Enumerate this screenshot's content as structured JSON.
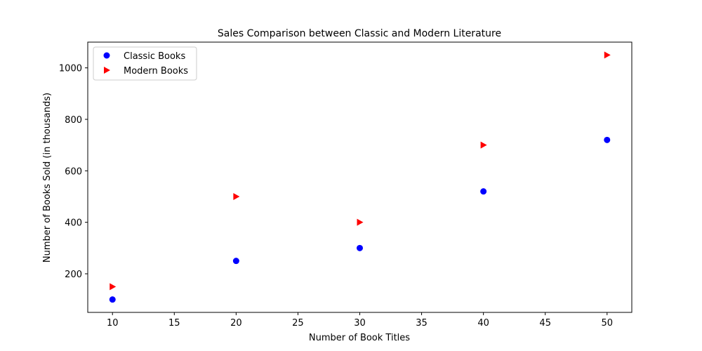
{
  "chart_data": {
    "type": "scatter",
    "title": "Sales Comparison between Classic and Modern Literature",
    "xlabel": "Number of Book Titles",
    "ylabel": "Number of Books Sold (in thousands)",
    "xlim": [
      8,
      52
    ],
    "ylim": [
      50,
      1100
    ],
    "xticks": [
      10,
      15,
      20,
      25,
      30,
      35,
      40,
      45,
      50
    ],
    "yticks": [
      200,
      400,
      600,
      800,
      1000
    ],
    "legend_position": "top-left",
    "grid": false,
    "series": [
      {
        "name": "Classic Books",
        "marker": "circle",
        "color": "#0000ff",
        "x": [
          10,
          20,
          30,
          40,
          50
        ],
        "y": [
          100,
          250,
          300,
          520,
          720
        ]
      },
      {
        "name": "Modern Books",
        "marker": "triangle-right",
        "color": "#ff0000",
        "x": [
          10,
          20,
          30,
          40,
          50
        ],
        "y": [
          150,
          500,
          400,
          700,
          1050
        ]
      }
    ]
  }
}
